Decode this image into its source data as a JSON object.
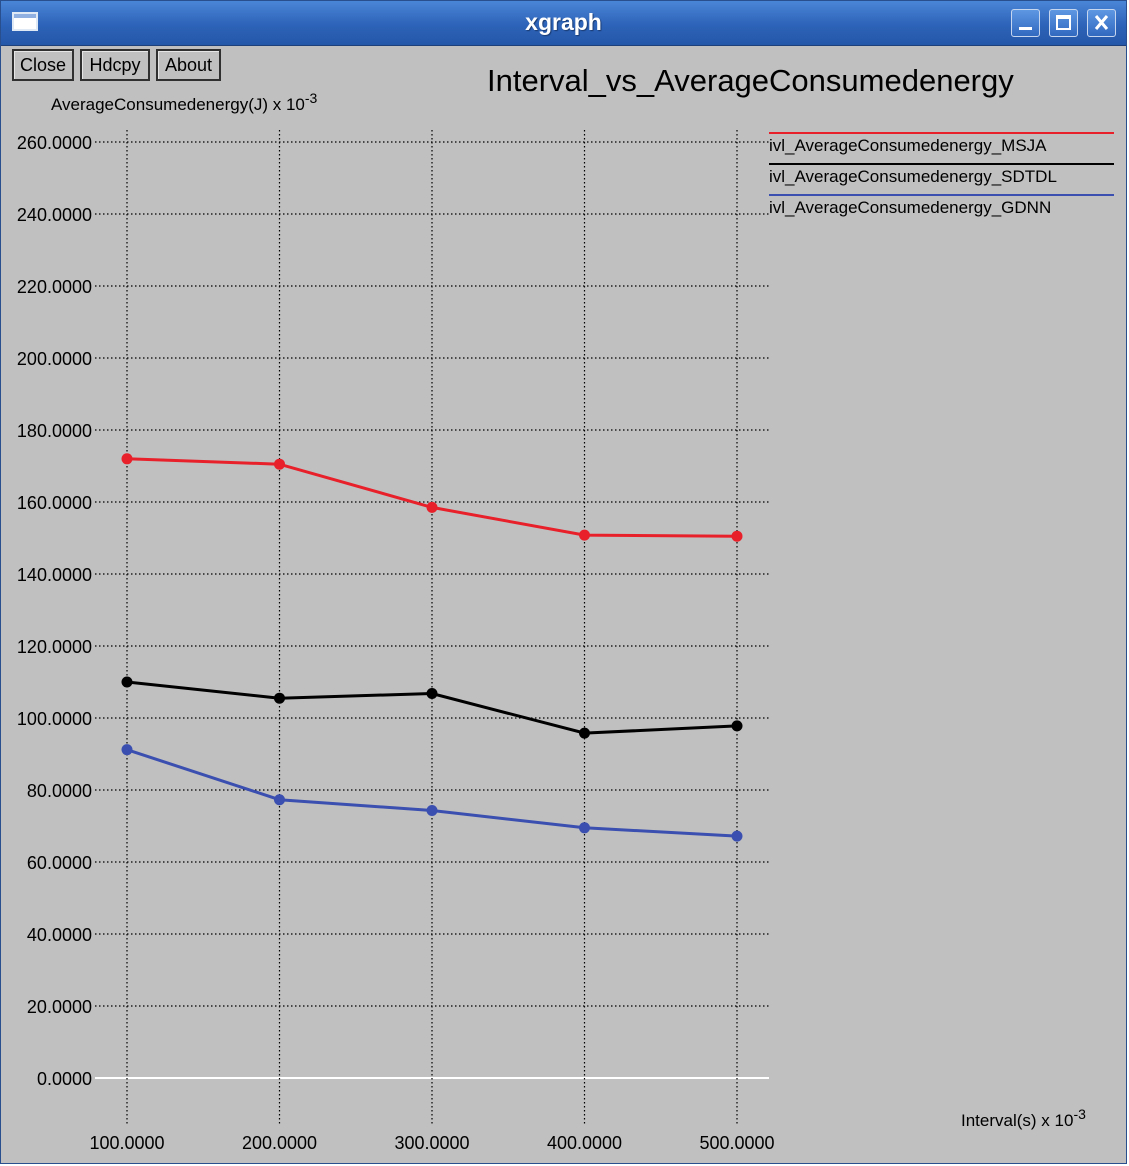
{
  "window": {
    "title": "xgraph",
    "buttons": [
      "Close",
      "Hdcpy",
      "About"
    ]
  },
  "colors": {
    "background": "#c0c0c0",
    "grid": "#000000",
    "zero_line": "#ffffff",
    "titlebar": "#2d63b8"
  },
  "chart_data": {
    "type": "line",
    "title": "Interval_vs_AverageConsumedenergy",
    "ylabel": "AverageConsumedenergy(J)",
    "ylabel_exp": "x 10-3",
    "xlabel": "Interval(s)",
    "xlabel_exp": "x 10-3",
    "xlim": [
      100,
      500
    ],
    "ylim": [
      0,
      260
    ],
    "x_ticks": [
      "100.0000",
      "200.0000",
      "300.0000",
      "400.0000",
      "500.0000"
    ],
    "y_ticks": [
      "0.0000",
      "20.0000",
      "40.0000",
      "60.0000",
      "80.0000",
      "100.0000",
      "120.0000",
      "140.0000",
      "160.0000",
      "180.0000",
      "200.0000",
      "220.0000",
      "240.0000",
      "260.0000"
    ],
    "grid": true,
    "legend_position": "top-right",
    "x": [
      100,
      200,
      300,
      400,
      500
    ],
    "series": [
      {
        "name": "ivl_AverageConsumedenergy_MSJA",
        "color": "#e8202a",
        "values": [
          172,
          170.5,
          158.5,
          150.8,
          150.5
        ]
      },
      {
        "name": "ivl_AverageConsumedenergy_SDTDL",
        "color": "#000000",
        "values": [
          110,
          105.5,
          106.8,
          95.8,
          97.8
        ]
      },
      {
        "name": "ivl_AverageConsumedenergy_GDNN",
        "color": "#3a4fb0",
        "values": [
          91.2,
          77.3,
          74.3,
          69.5,
          67.2
        ]
      }
    ]
  }
}
